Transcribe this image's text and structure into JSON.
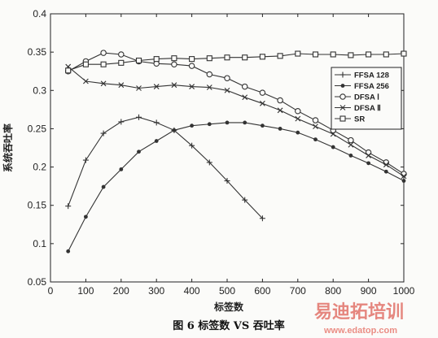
{
  "chart_data": {
    "type": "line",
    "xlabel": "标签数",
    "ylabel": "系统吞吐率",
    "xlim": [
      0,
      1000
    ],
    "ylim": [
      0.05,
      0.4
    ],
    "xticks": [
      "0",
      "100",
      "200",
      "300",
      "400",
      "500",
      "600",
      "700",
      "800",
      "900",
      "1000"
    ],
    "yticks": [
      "0.05",
      "0.1",
      "0.15",
      "0.2",
      "0.25",
      "0.3",
      "0.35",
      "0.4"
    ],
    "legend_position": "right",
    "grid": false,
    "series": [
      {
        "name": "FFSA 128",
        "marker": "plus",
        "x": [
          50,
          100,
          150,
          200,
          250,
          300,
          350,
          400,
          450,
          500,
          550,
          600
        ],
        "values": [
          0.149,
          0.209,
          0.244,
          0.259,
          0.265,
          0.258,
          0.248,
          0.228,
          0.206,
          0.182,
          0.157,
          0.133
        ]
      },
      {
        "name": "FFSA 256",
        "marker": "dot",
        "x": [
          50,
          100,
          150,
          200,
          250,
          300,
          350,
          400,
          450,
          500,
          550,
          600,
          650,
          700,
          750,
          800,
          850,
          900,
          950,
          1000
        ],
        "values": [
          0.09,
          0.135,
          0.174,
          0.197,
          0.22,
          0.234,
          0.248,
          0.254,
          0.256,
          0.258,
          0.258,
          0.254,
          0.25,
          0.245,
          0.236,
          0.226,
          0.215,
          0.205,
          0.194,
          0.182
        ]
      },
      {
        "name": "DFSA Ⅰ",
        "marker": "circle",
        "x": [
          50,
          100,
          150,
          200,
          250,
          300,
          350,
          400,
          450,
          500,
          550,
          600,
          650,
          700,
          750,
          800,
          850,
          900,
          950,
          1000
        ],
        "values": [
          0.325,
          0.338,
          0.349,
          0.347,
          0.338,
          0.335,
          0.334,
          0.332,
          0.321,
          0.316,
          0.305,
          0.297,
          0.287,
          0.273,
          0.261,
          0.248,
          0.235,
          0.219,
          0.206,
          0.191
        ]
      },
      {
        "name": "DFSA Ⅱ",
        "marker": "x",
        "x": [
          50,
          100,
          150,
          200,
          250,
          300,
          350,
          400,
          450,
          500,
          550,
          600,
          650,
          700,
          750,
          800,
          850,
          900,
          950,
          1000
        ],
        "values": [
          0.331,
          0.312,
          0.309,
          0.307,
          0.303,
          0.305,
          0.307,
          0.305,
          0.304,
          0.3,
          0.291,
          0.283,
          0.274,
          0.263,
          0.253,
          0.243,
          0.229,
          0.215,
          0.203,
          0.188
        ]
      },
      {
        "name": "SR",
        "marker": "square",
        "x": [
          50,
          100,
          150,
          200,
          250,
          300,
          350,
          400,
          450,
          500,
          550,
          600,
          650,
          700,
          750,
          800,
          850,
          900,
          950,
          1000
        ],
        "values": [
          0.326,
          0.334,
          0.334,
          0.336,
          0.339,
          0.341,
          0.342,
          0.341,
          0.342,
          0.343,
          0.343,
          0.344,
          0.345,
          0.348,
          0.347,
          0.347,
          0.346,
          0.347,
          0.347,
          0.348
        ]
      }
    ]
  },
  "caption": "图 6  标签数 VS 吞吐率",
  "watermark": {
    "text": "易迪拓培训",
    "url": "www.edatop.com"
  }
}
